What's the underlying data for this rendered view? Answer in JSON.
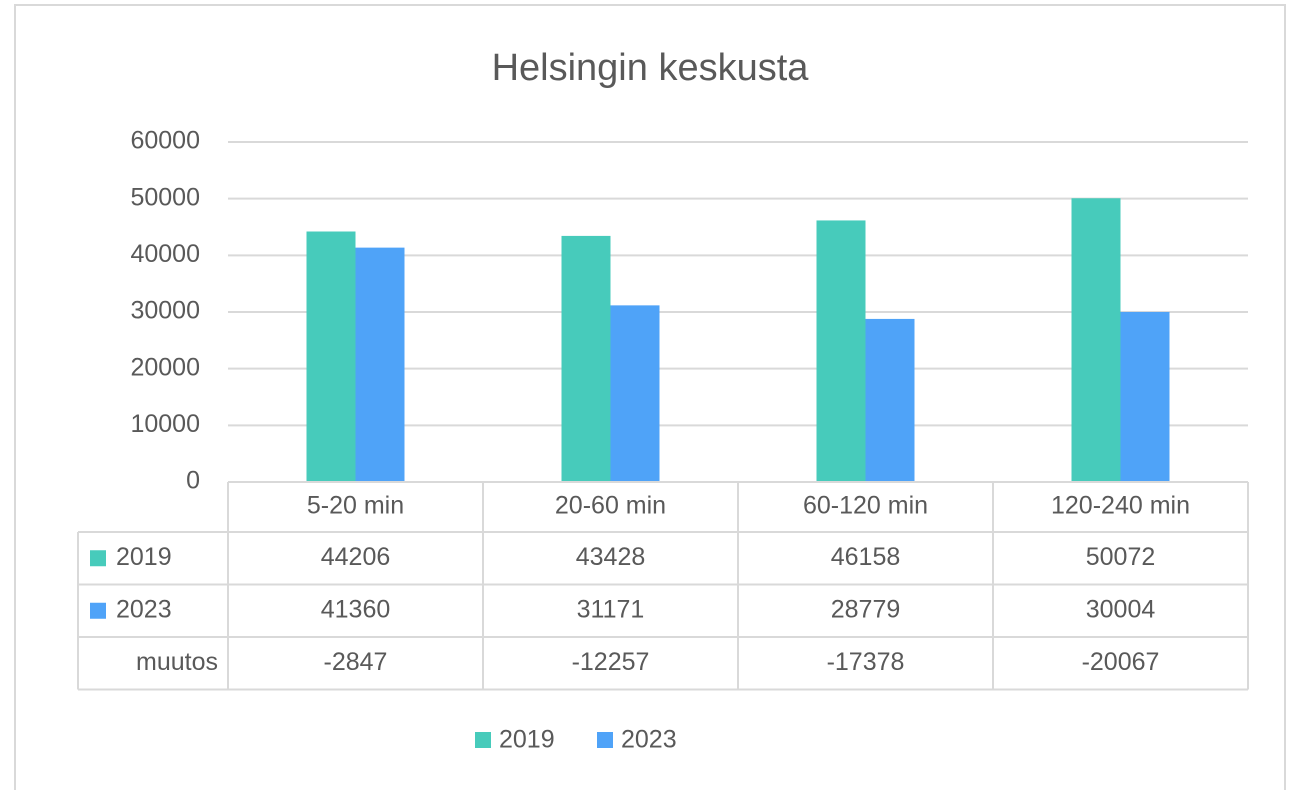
{
  "chart_data": {
    "type": "bar",
    "title": "Helsingin keskusta",
    "categories": [
      "5-20 min",
      "20-60 min",
      "60-120 min",
      "120-240 min"
    ],
    "series": [
      {
        "name": "2019",
        "color": "#47cbbb",
        "values": [
          44206,
          43428,
          46158,
          50072
        ]
      },
      {
        "name": "2023",
        "color": "#4fa3f8",
        "values": [
          41360,
          31171,
          28779,
          30004
        ]
      }
    ],
    "table_rows": [
      {
        "name": "muutos",
        "values": [
          -2847,
          -12257,
          -17378,
          -20067
        ]
      }
    ],
    "ylim": [
      0,
      60000
    ],
    "yticks": [
      0,
      10000,
      20000,
      30000,
      40000,
      50000,
      60000
    ],
    "grid": true,
    "legend": "bottom"
  }
}
